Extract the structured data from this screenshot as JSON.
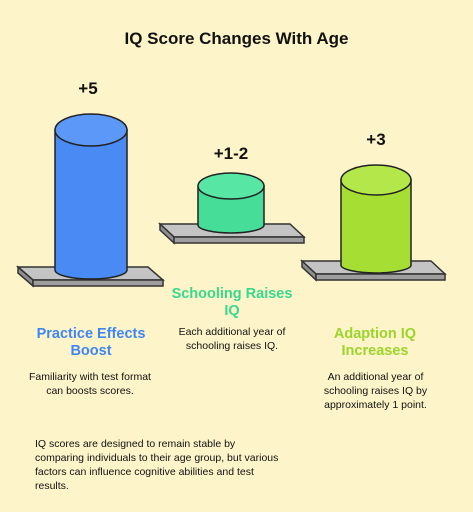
{
  "title": "IQ Score Changes With Age",
  "colors": {
    "background": "#fdf5c9",
    "practice": "#4a8af4",
    "schooling": "#45dd98",
    "adaption": "#a6de33",
    "platform": "#a9a9a9"
  },
  "items": [
    {
      "value_label": "+5",
      "heading": "Practice Effects Boost",
      "description": "Familiarity with test format can boosts scores."
    },
    {
      "value_label": "+1-2",
      "heading": "Schooling Raises IQ",
      "description": "Each additional year of schooling raises IQ."
    },
    {
      "value_label": "+3",
      "heading": "Adaption IQ Increases",
      "description": "An additional year of schooling raises IQ by approximately 1 point."
    }
  ],
  "footnote": "IQ scores are designed to remain stable by comparing individuals to their age group, but various factors can influence cognitive abilities and test results."
}
